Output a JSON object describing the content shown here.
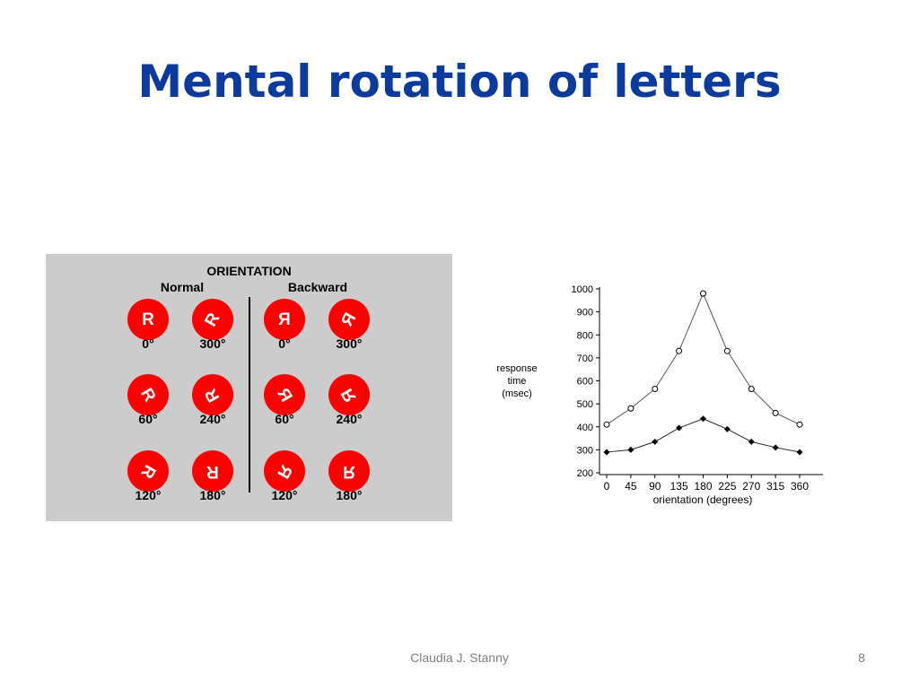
{
  "slide": {
    "title": "Mental rotation of letters",
    "footer": "Claudia J. Stanny",
    "page_number": "8"
  },
  "orientation_panel": {
    "heading": "ORIENTATION",
    "groups": [
      {
        "label": "Normal",
        "mirrored": false,
        "stimuli": [
          {
            "letter": "R",
            "angle": 0,
            "label": "0°"
          },
          {
            "letter": "R",
            "angle": 300,
            "label": "300°"
          },
          {
            "letter": "R",
            "angle": 60,
            "label": "60°"
          },
          {
            "letter": "R",
            "angle": 240,
            "label": "240°"
          },
          {
            "letter": "R",
            "angle": 120,
            "label": "120°"
          },
          {
            "letter": "R",
            "angle": 180,
            "label": "180°"
          }
        ]
      },
      {
        "label": "Backward",
        "mirrored": true,
        "stimuli": [
          {
            "letter": "R",
            "angle": 0,
            "label": "0°"
          },
          {
            "letter": "R",
            "angle": 300,
            "label": "300°"
          },
          {
            "letter": "R",
            "angle": 60,
            "label": "60°"
          },
          {
            "letter": "R",
            "angle": 240,
            "label": "240°"
          },
          {
            "letter": "R",
            "angle": 120,
            "label": "120°"
          },
          {
            "letter": "R",
            "angle": 180,
            "label": "180°"
          }
        ]
      }
    ],
    "colors": {
      "disc": "#ff0000",
      "panel": "#cccccc"
    }
  },
  "chart_data": {
    "type": "line",
    "ylabel": "response time (msec)",
    "xlabel": "orientation (degrees)",
    "x": [
      0,
      45,
      90,
      135,
      180,
      225,
      270,
      315,
      360
    ],
    "xticks": [
      "0",
      "45",
      "90",
      "135",
      "180",
      "225",
      "270",
      "315",
      "360"
    ],
    "yticks": [
      "200",
      "300",
      "400",
      "500",
      "600",
      "700",
      "800",
      "900",
      "1000"
    ],
    "ylim": [
      200,
      1000
    ],
    "xlim": [
      0,
      360
    ],
    "grid": false,
    "series": [
      {
        "marker": "open-circle",
        "values": [
          410,
          480,
          565,
          730,
          980,
          730,
          565,
          460,
          410
        ]
      },
      {
        "marker": "filled-diamond",
        "values": [
          290,
          300,
          335,
          395,
          435,
          390,
          335,
          310,
          290
        ]
      }
    ]
  }
}
